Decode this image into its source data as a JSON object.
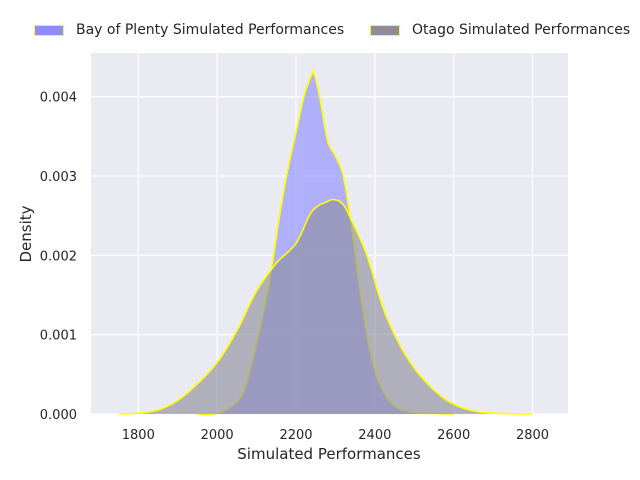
{
  "chart_data": {
    "type": "area",
    "title": "",
    "xlabel": "Simulated Performances",
    "ylabel": "Density",
    "xlim": [
      1680,
      2890
    ],
    "ylim": [
      0,
      0.00455
    ],
    "x_ticks": [
      1800,
      2000,
      2200,
      2400,
      2600,
      2800
    ],
    "y_ticks": [
      0.0,
      0.001,
      0.002,
      0.003,
      0.004
    ],
    "y_tick_labels": [
      "0.000",
      "0.001",
      "0.002",
      "0.003",
      "0.004"
    ],
    "grid": true,
    "legend_position": "top",
    "series": [
      {
        "name": "Bay of Plenty Simulated Performances",
        "fill_color": "#8c8cff",
        "edge_color": "#ffff00",
        "x": [
          1950,
          2000,
          2050,
          2075,
          2100,
          2120,
          2140,
          2160,
          2180,
          2200,
          2220,
          2240,
          2245,
          2260,
          2280,
          2300,
          2320,
          2340,
          2360,
          2380,
          2400,
          2420,
          2440,
          2460,
          2500,
          2550,
          2600
        ],
        "y": [
          0.0,
          1e-05,
          0.00015,
          0.0004,
          0.0009,
          0.00135,
          0.0019,
          0.00255,
          0.0031,
          0.00355,
          0.004,
          0.00428,
          0.0043,
          0.004,
          0.00345,
          0.00325,
          0.003,
          0.0024,
          0.00165,
          0.001,
          0.00055,
          0.0003,
          0.00015,
          7e-05,
          2e-05,
          5e-06,
          0.0
        ]
      },
      {
        "name": "Otago Simulated Performances",
        "fill_color": "#8c8c9c",
        "edge_color": "#ffff00",
        "x": [
          1750,
          1800,
          1850,
          1900,
          1950,
          2000,
          2050,
          2100,
          2150,
          2200,
          2240,
          2280,
          2300,
          2320,
          2340,
          2380,
          2420,
          2460,
          2500,
          2540,
          2580,
          2620,
          2660,
          2700,
          2750,
          2800
        ],
        "y": [
          0.0,
          1e-05,
          5e-05,
          0.00017,
          0.00038,
          0.00065,
          0.00105,
          0.00155,
          0.0019,
          0.00215,
          0.00255,
          0.00268,
          0.0027,
          0.00264,
          0.00245,
          0.002,
          0.00135,
          0.0009,
          0.00058,
          0.00035,
          0.00018,
          8e-05,
          3e-05,
          1e-05,
          2e-06,
          0.0
        ]
      }
    ]
  }
}
